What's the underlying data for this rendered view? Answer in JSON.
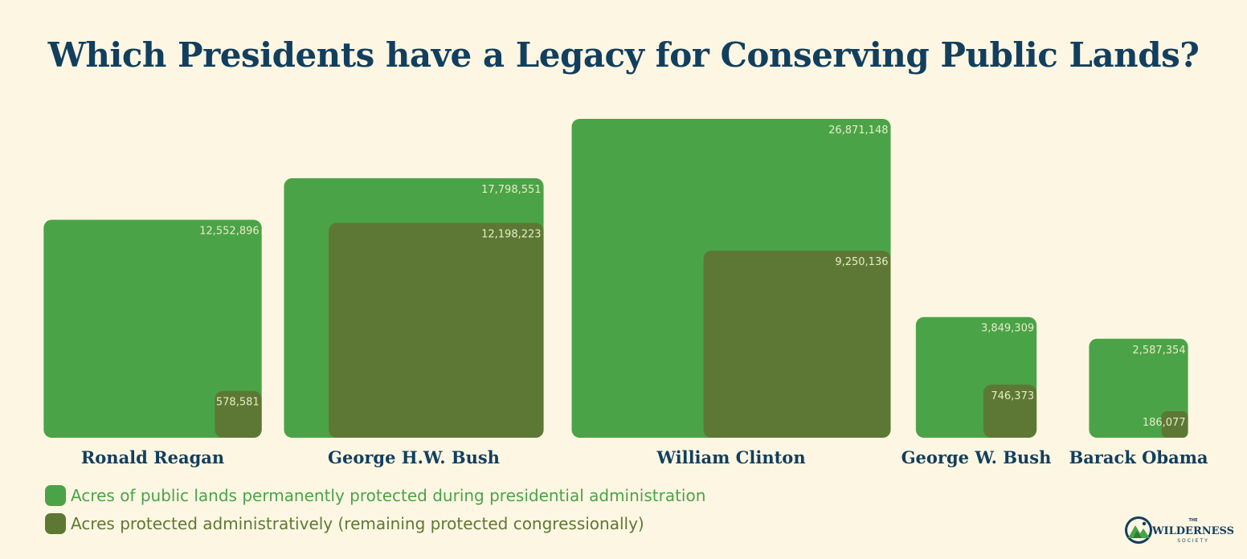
{
  "title": "Which Presidents have a Legacy for Conserving Public Lands?",
  "colors": {
    "background": "#fdf6e3",
    "title": "#123f5e",
    "total": "#4ba347",
    "administrative": "#5d7834",
    "value_label": "#e6ecc8"
  },
  "legend": [
    {
      "label": "Acres of public lands permanently protected during presidential administration",
      "color": "#4ba347"
    },
    {
      "label": "Acres protected administratively (remaining protected congressionally)",
      "color": "#5d7834"
    }
  ],
  "logo": {
    "small": "THE",
    "main": "WILDERNESS",
    "sub": "SOCIETY"
  },
  "chart_data": {
    "type": "bar",
    "categories": [
      "Ronald Reagan",
      "George H.W. Bush",
      "William Clinton",
      "George W. Bush",
      "Barack Obama"
    ],
    "series": [
      {
        "name": "Acres of public lands permanently protected during presidential administration",
        "values": [
          12552896,
          17798551,
          26871148,
          3849309,
          2587354
        ]
      },
      {
        "name": "Acres protected administratively (remaining protected congressionally)",
        "values": [
          578581,
          12198223,
          9250136,
          746373,
          186077
        ]
      }
    ],
    "labels": [
      [
        "12,552,896",
        "17,798,551",
        "26,871,148",
        "3,849,309",
        "2,587,354"
      ],
      [
        "578,581",
        "12,198,223",
        "9,250,136",
        "746,373",
        "186,077"
      ]
    ],
    "xlabel": "",
    "ylabel": ""
  }
}
